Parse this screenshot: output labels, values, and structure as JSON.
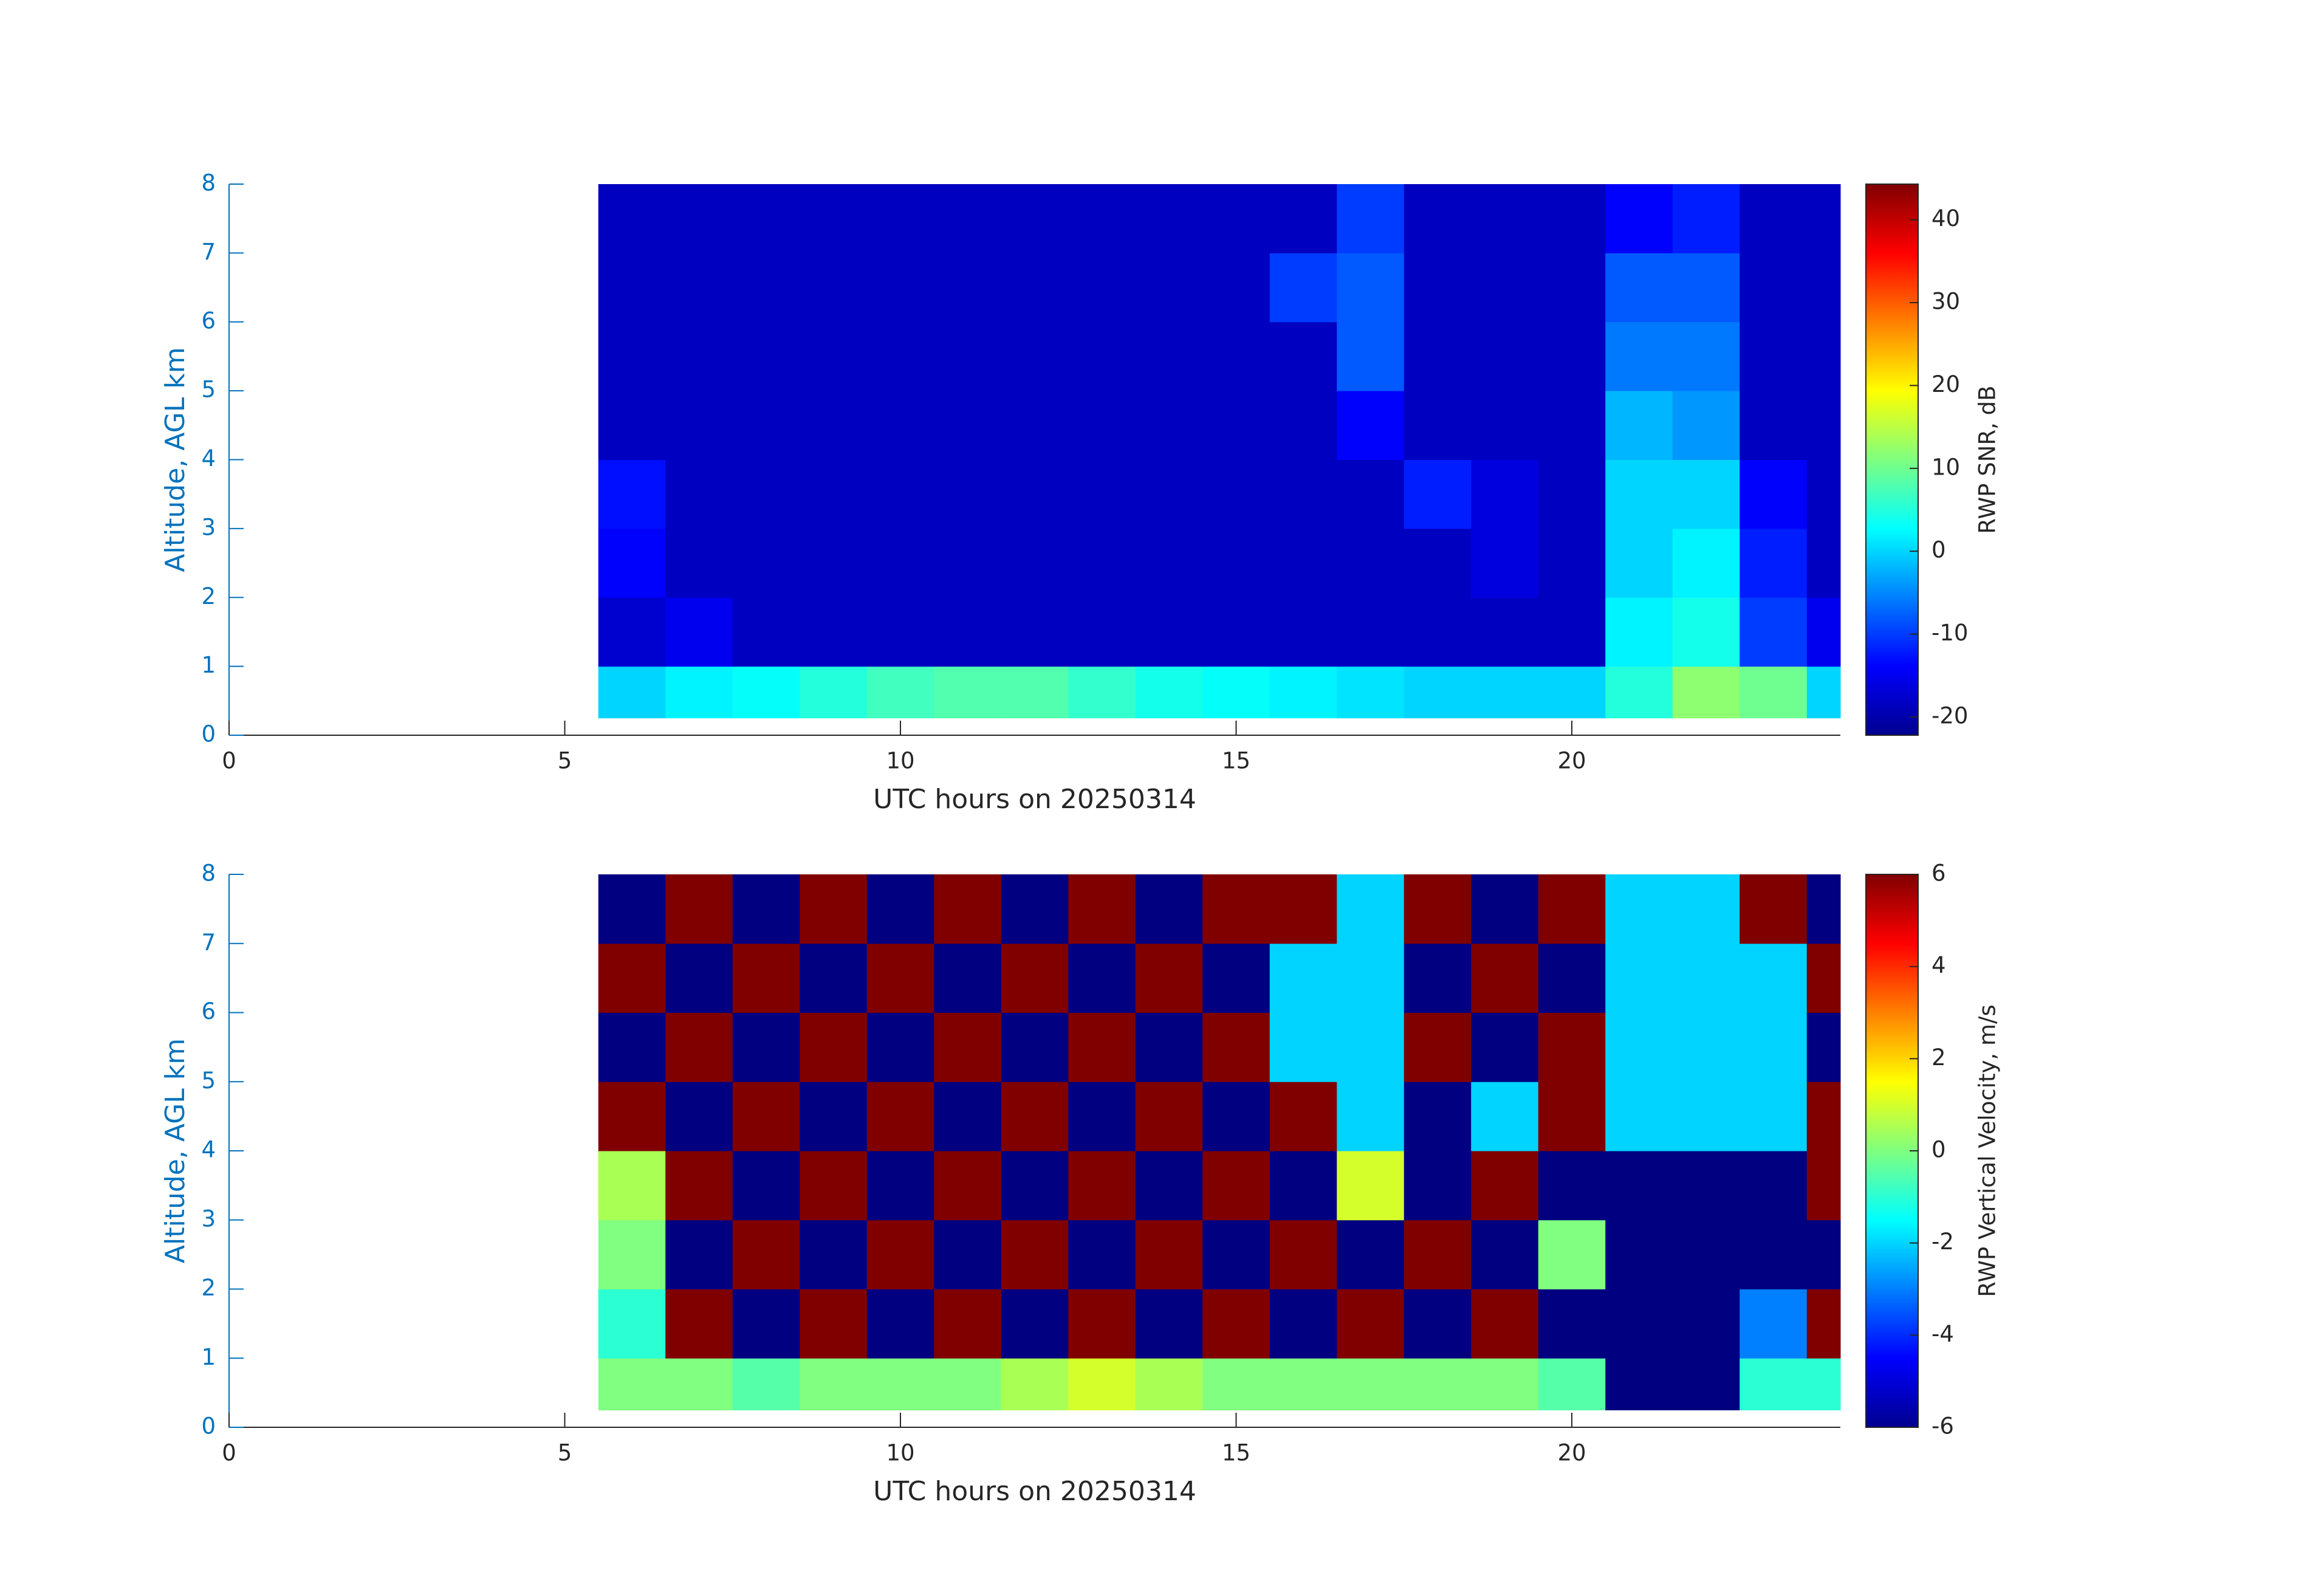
{
  "chart_data": [
    {
      "type": "heatmap",
      "colormap": "jet",
      "xlabel": "UTC hours on 20250314",
      "ylabel": "Altitude, AGL km",
      "colorbar_label": "RWP SNR, dB",
      "xlim": [
        0,
        24
      ],
      "ylim": [
        0,
        8
      ],
      "xticks": [
        0,
        5,
        10,
        15,
        20
      ],
      "yticks": [
        0,
        1,
        2,
        3,
        4,
        5,
        6,
        7,
        8
      ],
      "clim": [
        -22.2,
        44.3
      ],
      "cticks": [
        -20,
        -10,
        0,
        10,
        20,
        30,
        40
      ],
      "x_edges": [
        5.5,
        6.5,
        7.5,
        8.5,
        9.5,
        10.5,
        11.5,
        12.5,
        13.5,
        14.5,
        15.5,
        16.5,
        17.5,
        18.5,
        19.5,
        20.5,
        21.5,
        22.5,
        23.5,
        24
      ],
      "y_edges": [
        0.25,
        1,
        2,
        3,
        4,
        5,
        6,
        7,
        8
      ],
      "values": [
        [
          0,
          2,
          3,
          5,
          7,
          8,
          8,
          6,
          4,
          3,
          2,
          1,
          0,
          0,
          0,
          5,
          12,
          10,
          0
        ],
        [
          -17,
          -15,
          -18,
          -18,
          -18,
          -18,
          -18,
          -18,
          -18,
          -18,
          -18,
          -18,
          -18,
          -18,
          -18,
          2,
          4,
          -10,
          -15
        ],
        [
          -14,
          -18,
          -18,
          -18,
          -18,
          -18,
          -18,
          -18,
          -18,
          -18,
          -18,
          -18,
          -18,
          -16,
          -18,
          0,
          2,
          -12,
          -18
        ],
        [
          -13,
          -18,
          -18,
          -18,
          -18,
          -18,
          -18,
          -18,
          -18,
          -18,
          -18,
          -18,
          -12,
          -16,
          -18,
          0,
          0,
          -14,
          -18
        ],
        [
          -18,
          -18,
          -18,
          -18,
          -18,
          -18,
          -18,
          -18,
          -18,
          -18,
          -18,
          -14,
          -18,
          -18,
          -18,
          -2,
          -4,
          -18,
          -18
        ],
        [
          -18,
          -18,
          -18,
          -18,
          -18,
          -18,
          -18,
          -18,
          -18,
          -18,
          -18,
          -8,
          -18,
          -18,
          -18,
          -6,
          -6,
          -18,
          -18
        ],
        [
          -18,
          -18,
          -18,
          -18,
          -18,
          -18,
          -18,
          -18,
          -18,
          -18,
          -10,
          -8,
          -18,
          -18,
          -18,
          -8,
          -8,
          -18,
          -18
        ],
        [
          -18,
          -18,
          -18,
          -18,
          -18,
          -18,
          -18,
          -18,
          -18,
          -18,
          -18,
          -10,
          -18,
          -18,
          -18,
          -14,
          -12,
          -18,
          -18
        ]
      ]
    },
    {
      "type": "heatmap",
      "colormap": "jet",
      "xlabel": "UTC hours on 20250314",
      "ylabel": "Altitude, AGL km",
      "colorbar_label": "RWP Vertical Velocity, m/s",
      "xlim": [
        0,
        24
      ],
      "ylim": [
        0,
        8
      ],
      "xticks": [
        0,
        5,
        10,
        15,
        20
      ],
      "yticks": [
        0,
        1,
        2,
        3,
        4,
        5,
        6,
        7,
        8
      ],
      "clim": [
        -6,
        6
      ],
      "cticks": [
        -6,
        -4,
        -2,
        0,
        2,
        4,
        6
      ],
      "x_edges": [
        5.5,
        6.5,
        7.5,
        8.5,
        9.5,
        10.5,
        11.5,
        12.5,
        13.5,
        14.5,
        15.5,
        16.5,
        17.5,
        18.5,
        19.5,
        20.5,
        21.5,
        22.5,
        23.5,
        24
      ],
      "y_edges": [
        0.25,
        1,
        2,
        3,
        4,
        5,
        6,
        7,
        8
      ],
      "values": [
        [
          0,
          0,
          -0.5,
          0,
          0,
          0,
          0.5,
          1,
          0.5,
          0,
          0,
          0,
          0,
          0,
          -0.5,
          -6,
          -6,
          -1,
          -1
        ],
        [
          -1,
          6,
          -6,
          6,
          -6,
          6,
          -6,
          6,
          -6,
          6,
          -6,
          6,
          -6,
          6,
          -6,
          -6,
          -6,
          -3,
          6
        ],
        [
          0,
          -6,
          6,
          -6,
          6,
          -6,
          6,
          -6,
          6,
          -6,
          6,
          -6,
          6,
          -6,
          0,
          -6,
          -6,
          -6,
          -6
        ],
        [
          0.5,
          6,
          -6,
          6,
          -6,
          6,
          -6,
          6,
          -6,
          6,
          -6,
          1,
          -6,
          6,
          -6,
          -6,
          -6,
          -6,
          6
        ],
        [
          6,
          -6,
          6,
          -6,
          6,
          -6,
          6,
          -6,
          6,
          -6,
          6,
          -2,
          -6,
          -2,
          6,
          -2,
          -2,
          -2,
          6
        ],
        [
          -6,
          6,
          -6,
          6,
          -6,
          6,
          -6,
          6,
          -6,
          6,
          -2,
          -2,
          6,
          -6,
          6,
          -2,
          -2,
          -2,
          -6
        ],
        [
          6,
          -6,
          6,
          -6,
          6,
          -6,
          6,
          -6,
          6,
          -6,
          -2,
          -2,
          -6,
          6,
          -6,
          -2,
          -2,
          -2,
          6
        ],
        [
          -6,
          6,
          -6,
          6,
          -6,
          6,
          -6,
          6,
          -6,
          6,
          6,
          -2,
          6,
          -6,
          6,
          -2,
          -2,
          6,
          -6
        ]
      ]
    }
  ]
}
